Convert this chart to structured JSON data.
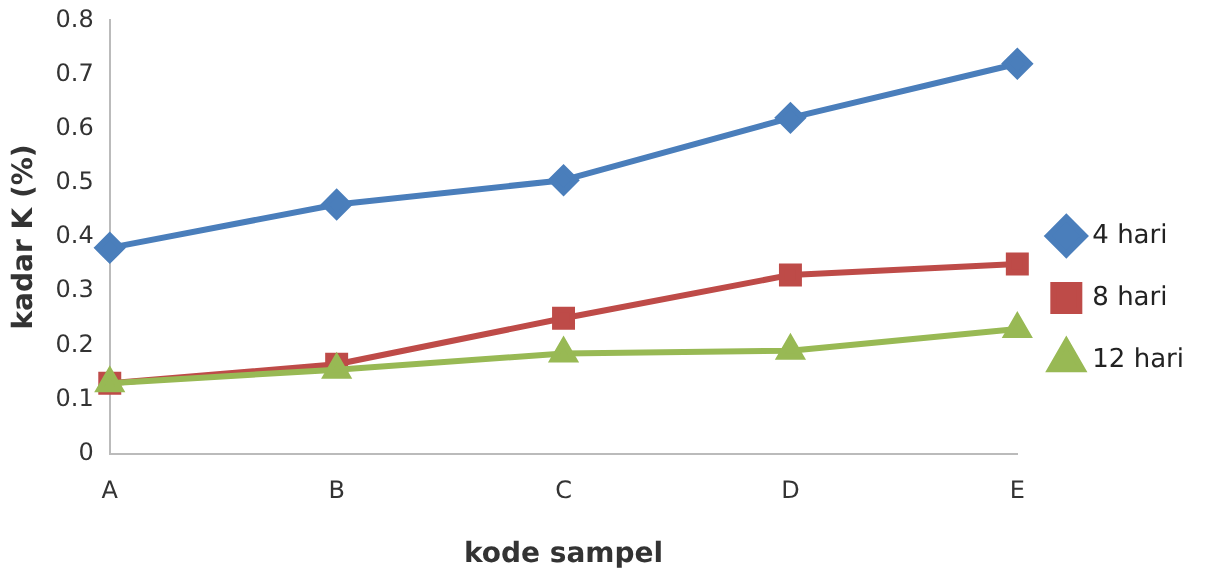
{
  "chart_data": {
    "type": "line",
    "xlabel": "kode sampel",
    "ylabel": "kadar K (%)",
    "categories": [
      "A",
      "B",
      "C",
      "D",
      "E"
    ],
    "series": [
      {
        "name": "4 hari",
        "color": "#4a7ebb",
        "marker": "diamond",
        "values": [
          0.38,
          0.46,
          0.505,
          0.62,
          0.72
        ]
      },
      {
        "name": "8 hari",
        "color": "#be4b48",
        "marker": "square",
        "values": [
          0.13,
          0.165,
          0.25,
          0.33,
          0.35
        ]
      },
      {
        "name": "12 hari",
        "color": "#98b954",
        "marker": "triangle",
        "values": [
          0.13,
          0.155,
          0.185,
          0.19,
          0.23
        ]
      }
    ],
    "ylim": [
      0,
      0.8
    ],
    "yticks": [
      0,
      0.1,
      0.2,
      0.3,
      0.4,
      0.5,
      0.6,
      0.7,
      0.8
    ],
    "grid": false,
    "legend": "right"
  }
}
